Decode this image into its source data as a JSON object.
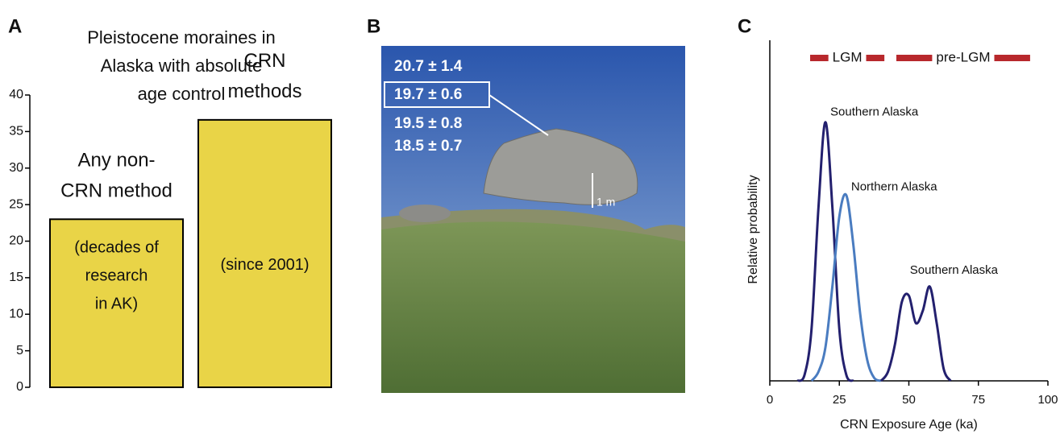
{
  "chart_data": [
    {
      "type": "bar",
      "panel": "A",
      "title": [
        "Pleistocene moraines in",
        "Alaska with absolute",
        "age control"
      ],
      "categories": [
        [
          "Any non-",
          "CRN method"
        ],
        [
          "CRN",
          "methods"
        ]
      ],
      "notes": [
        [
          "(decades of",
          "research",
          "in AK)"
        ],
        [
          "(since 2001)"
        ]
      ],
      "values": [
        23,
        36.6
      ],
      "color": "#e9d447",
      "ylim": [
        0,
        40
      ],
      "yticks": [
        0,
        5,
        10,
        15,
        20,
        25,
        30,
        35,
        40
      ]
    },
    {
      "type": "line",
      "panel": "C",
      "xlabel": "CRN Exposure Age (ka)",
      "ylabel": "Relative probability",
      "x": [
        10,
        12.5,
        15,
        17.5,
        20,
        22.5,
        25,
        27.5,
        30,
        32.5,
        35,
        37.5,
        40,
        42.5,
        45,
        47.5,
        50,
        52.5,
        55,
        57.5,
        60,
        62.5,
        65,
        67.5,
        70
      ],
      "series": [
        {
          "name": "Southern Alaska",
          "color": "#23206e",
          "values": [
            0,
            0.02,
            0.17,
            0.57,
            0.85,
            0.57,
            0.17,
            0.02,
            0,
            null,
            null,
            null,
            null,
            null,
            null,
            null,
            null,
            null,
            null,
            null,
            null,
            null,
            null,
            null,
            null
          ]
        },
        {
          "name": "Northern Alaska",
          "color": "#4a7cc0",
          "values": [
            null,
            null,
            0,
            0.03,
            0.11,
            0.31,
            0.54,
            0.61,
            0.45,
            0.22,
            0.07,
            0.01,
            0,
            null,
            null,
            null,
            null,
            null,
            null,
            null,
            null,
            null,
            null,
            null,
            null
          ]
        },
        {
          "name": "Southern Alaska",
          "color": "#23206e",
          "values": [
            null,
            null,
            null,
            null,
            null,
            null,
            null,
            null,
            null,
            null,
            null,
            null,
            0,
            0.03,
            0.12,
            0.26,
            0.28,
            0.19,
            0.23,
            0.31,
            0.19,
            0.04,
            0,
            null,
            null
          ]
        }
      ],
      "periods": [
        {
          "label": "LGM",
          "start": 14.5,
          "end": 41.2
        },
        {
          "label": "pre-LGM",
          "start": 45.5,
          "end": 93.6
        }
      ],
      "period_color": "#b8282c",
      "xlim": [
        0,
        100
      ],
      "xticks": [
        0,
        25,
        50,
        75,
        100
      ],
      "ylim": [
        0,
        1
      ]
    }
  ],
  "photo": {
    "panel": "B",
    "ages": [
      "20.7 ± 1.4",
      "19.7 ± 0.6",
      "19.5 ± 0.8",
      "18.5 ± 0.7"
    ],
    "highlighted": 1,
    "scale_label": "1 m"
  }
}
